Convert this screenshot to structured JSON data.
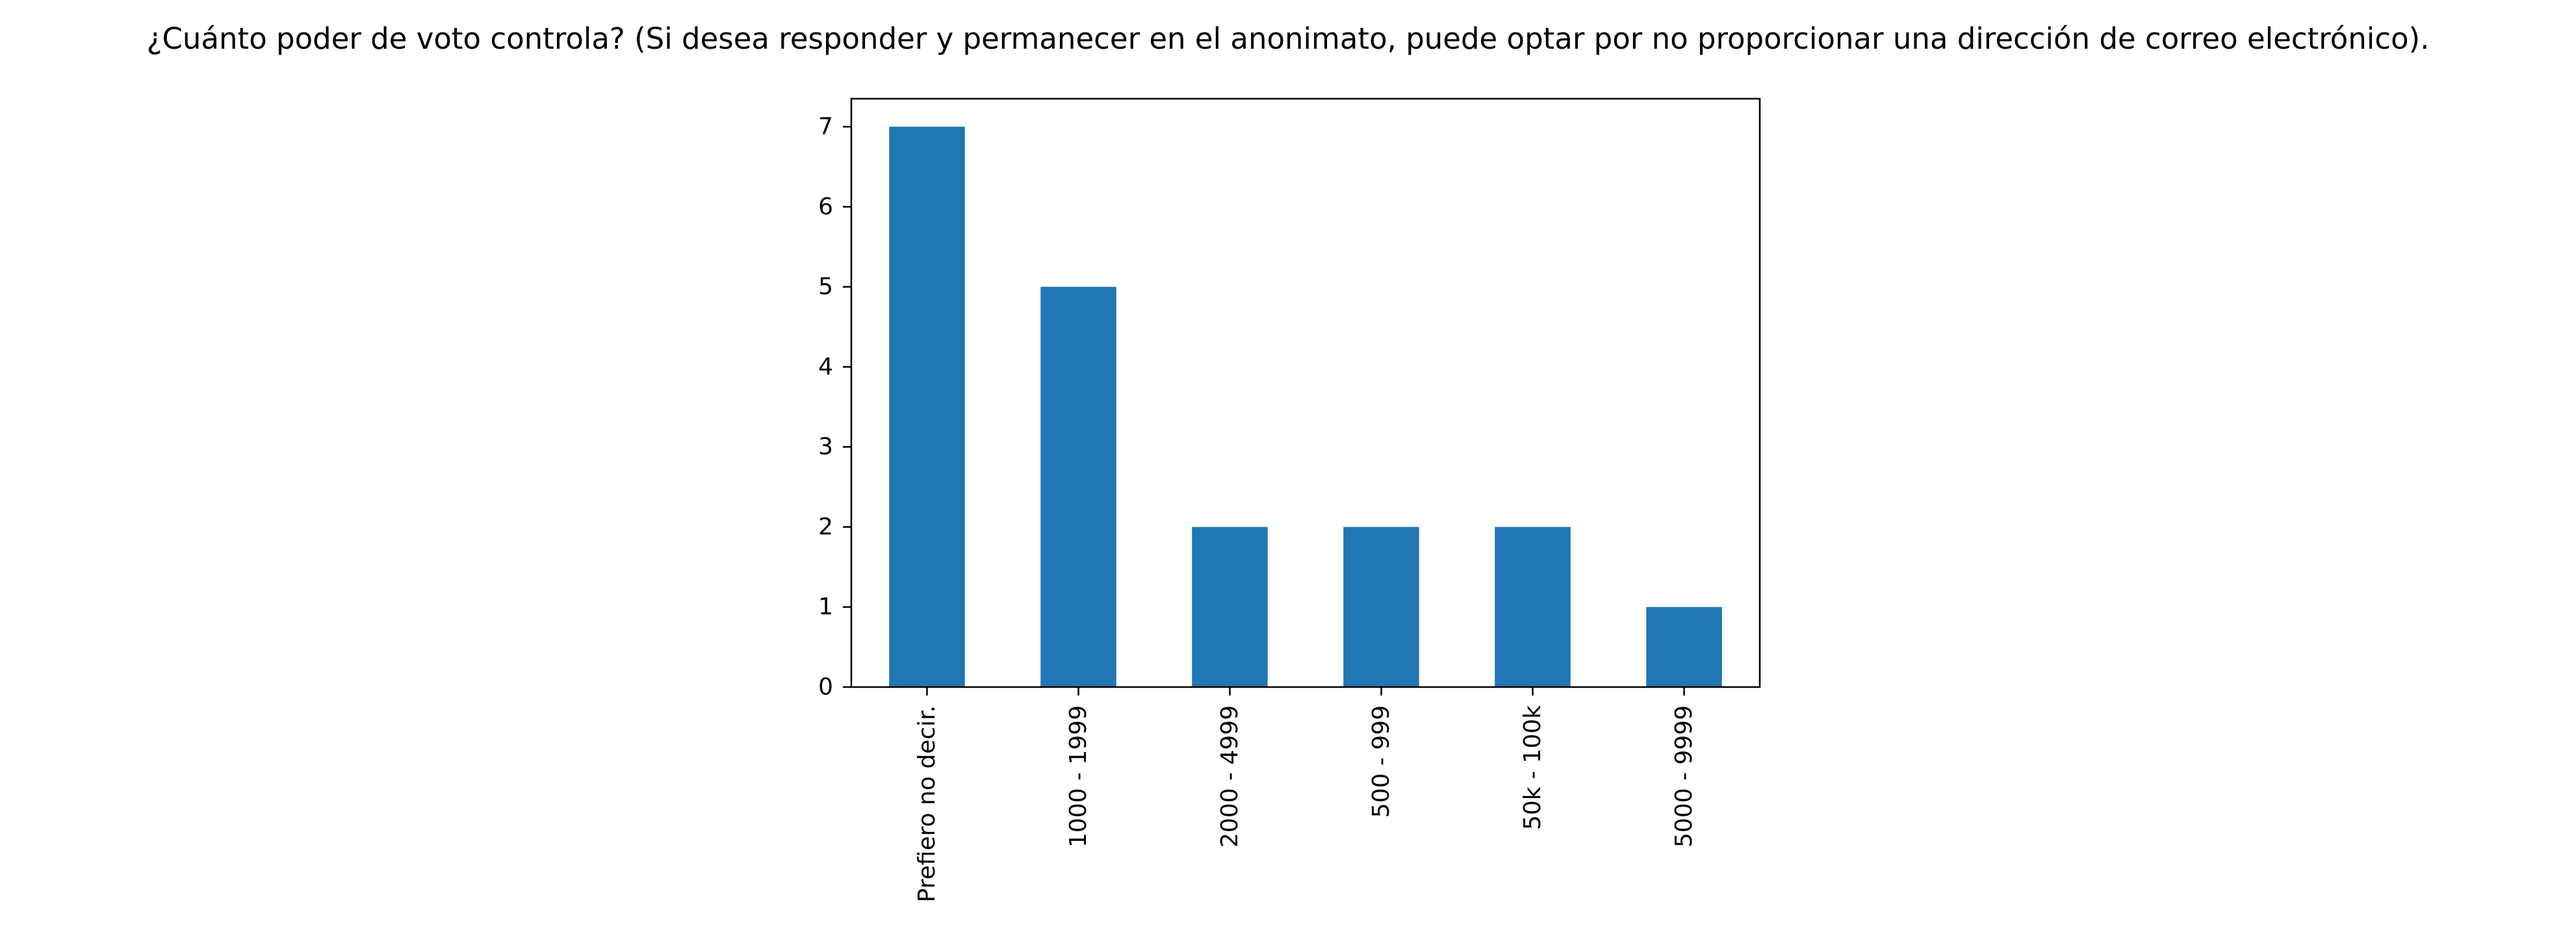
{
  "chart_data": {
    "type": "bar",
    "title": "¿Cuánto poder de voto controla? (Si desea responder y permanecer en el anonimato, puede optar por no proporcionar una dirección de correo electrónico).",
    "xlabel": "",
    "ylabel": "",
    "categories": [
      "Prefiero no decir.",
      "1000 - 1999",
      "2000 - 4999",
      "500 - 999",
      "50k - 100k",
      "5000 - 9999"
    ],
    "values": [
      7,
      5,
      2,
      2,
      2,
      1
    ],
    "ylim": [
      0,
      7.35
    ],
    "yticks": [
      0,
      1,
      2,
      3,
      4,
      5,
      6,
      7
    ],
    "grid": false,
    "legend": false,
    "bar_color": "#1f77b4",
    "axis_color": "#000000"
  }
}
